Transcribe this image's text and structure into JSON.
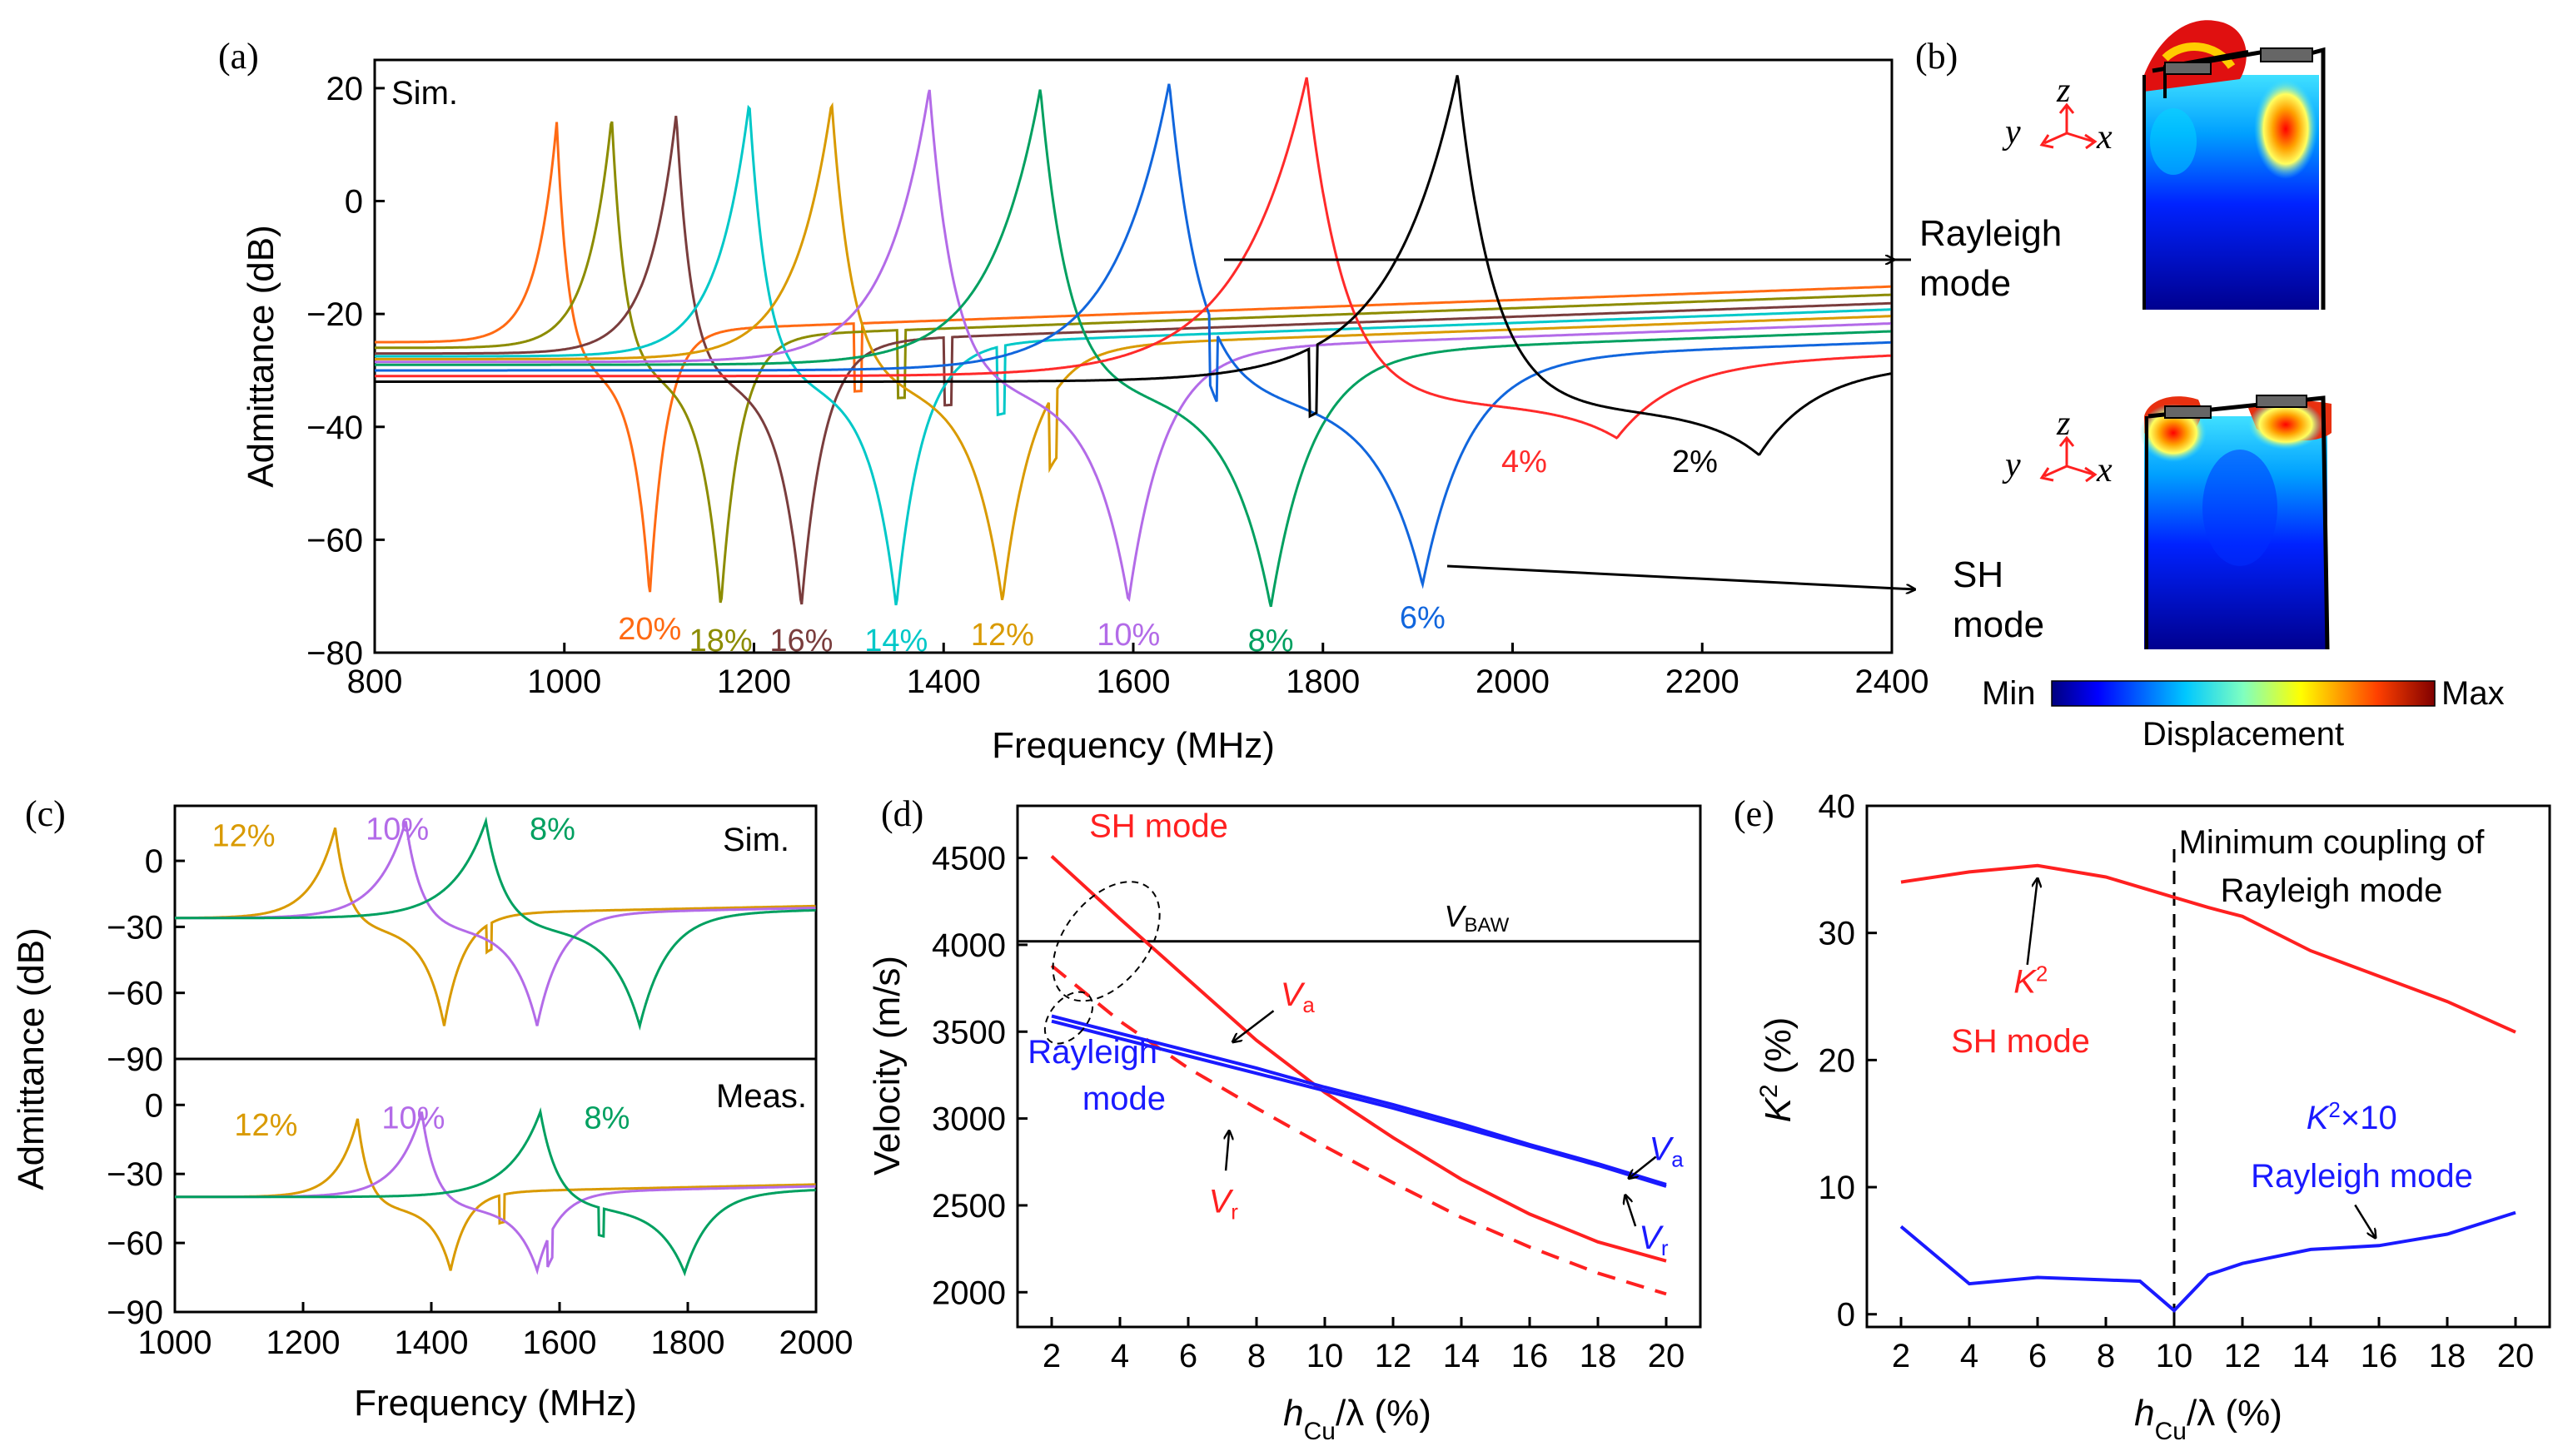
{
  "colors": {
    "c20": "#ff6a13",
    "c18": "#8c8c00",
    "c16": "#7a3d3d",
    "c14": "#00c8c8",
    "c12": "#d99a00",
    "c10": "#b36be8",
    "c8": "#00a060",
    "c6": "#1166dd",
    "c4": "#ff2a2a",
    "c2": "#000000",
    "sh": "#ff2020",
    "ray": "#1a1aff"
  },
  "panel_labels": {
    "a": "(a)",
    "b": "(b)",
    "c": "(c)",
    "d": "(d)",
    "e": "(e)"
  },
  "panel_b": {
    "rayleigh_line1": "Rayleigh",
    "rayleigh_line2": "mode",
    "sh_line1": "SH",
    "sh_line2": "mode",
    "axis_z": "z",
    "axis_y": "y",
    "axis_x": "x",
    "colorbar_min": "Min",
    "colorbar_max": "Max",
    "colorbar_label": "Displacement"
  },
  "chart_data": [
    {
      "id": "a",
      "type": "line",
      "annotation": "Sim.",
      "xlabel": "Frequency (MHz)",
      "ylabel": "Admittance (dB)",
      "xlim": [
        800,
        2400
      ],
      "ylim": [
        -80,
        25
      ],
      "xticks": [
        "800",
        "1000",
        "1200",
        "1400",
        "1600",
        "1800",
        "2000",
        "2200",
        "2400"
      ],
      "yticks": [
        "−80",
        "−60",
        "−40",
        "−20",
        "0",
        "20"
      ],
      "series": [
        {
          "name": "20%",
          "color": "c20",
          "fr": 992,
          "fa": 1090,
          "peak": 14,
          "anti": -70,
          "base": -25,
          "spur": 1310
        },
        {
          "name": "18%",
          "color": "c18",
          "fr": 1050,
          "fa": 1165,
          "peak": 15,
          "anti": -72,
          "base": -26,
          "spur": 1355
        },
        {
          "name": "16%",
          "color": "c16",
          "fr": 1118,
          "fa": 1250,
          "peak": 15.5,
          "anti": -72,
          "base": -27,
          "spur": 1405
        },
        {
          "name": "14%",
          "color": "c14",
          "fr": 1195,
          "fa": 1350,
          "peak": 17.5,
          "anti": -72,
          "base": -27.5,
          "spur": 1460
        },
        {
          "name": "12%",
          "color": "c12",
          "fr": 1282,
          "fa": 1462,
          "peak": 17.5,
          "anti": -71,
          "base": -28,
          "spur": 1515
        },
        {
          "name": "10%",
          "color": "c10",
          "fr": 1385,
          "fa": 1595,
          "peak": 20,
          "anti": -71,
          "base": -28.5,
          "spur": 0
        },
        {
          "name": "8%",
          "color": "c8",
          "fr": 1502,
          "fa": 1745,
          "peak": 20,
          "anti": -72,
          "base": -29,
          "spur": 0
        },
        {
          "name": "6%",
          "color": "c6",
          "fr": 1638,
          "fa": 1905,
          "peak": 21,
          "anti": -68,
          "base": -30,
          "spur": 1685
        },
        {
          "name": "4%",
          "color": "c4",
          "fr": 1783,
          "fa": 2110,
          "peak": 22,
          "anti": -42,
          "base": -31,
          "spur": 0
        },
        {
          "name": "2%",
          "color": "c2",
          "fr": 1942,
          "fa": 2260,
          "peak": 22.5,
          "anti": -45,
          "base": -32,
          "spur": 1790
        }
      ]
    },
    {
      "id": "c",
      "type": "line",
      "xlabel": "Frequency (MHz)",
      "ylabel": "Admittance (dB)",
      "xlim": [
        1000,
        2000
      ],
      "xticks": [
        "1000",
        "1200",
        "1400",
        "1600",
        "1800",
        "2000"
      ],
      "top": {
        "annotation": "Sim.",
        "ylim": [
          -90,
          25
        ],
        "yticks": [
          "−90",
          "−60",
          "−30",
          "0"
        ],
        "series": [
          {
            "name": "12%",
            "color": "c12",
            "fr": 1250,
            "fa": 1420,
            "peak": 15,
            "anti": -75,
            "spur": 1490
          },
          {
            "name": "10%",
            "color": "c10",
            "fr": 1360,
            "fa": 1565,
            "peak": 18,
            "anti": -75,
            "spur": 0
          },
          {
            "name": "8%",
            "color": "c8",
            "fr": 1485,
            "fa": 1725,
            "peak": 18,
            "anti": -75,
            "spur": 0
          }
        ]
      },
      "bottom": {
        "annotation": "Meas.",
        "ylim": [
          -90,
          20
        ],
        "yticks": [
          "−90",
          "−60",
          "−30",
          "0"
        ],
        "series": [
          {
            "name": "12%",
            "color": "c12",
            "fr": 1285,
            "fa": 1430,
            "peak": -6,
            "anti": -72,
            "spur": 1510
          },
          {
            "name": "10%",
            "color": "c10",
            "fr": 1385,
            "fa": 1565,
            "peak": -3,
            "anti": -72,
            "spur": 1585
          },
          {
            "name": "8%",
            "color": "c8",
            "fr": 1570,
            "fa": 1795,
            "peak": -3,
            "anti": -73,
            "spur": 1665
          }
        ]
      }
    },
    {
      "id": "d",
      "type": "line",
      "xlabel_main": "h",
      "xlabel_sub": "Cu",
      "xlabel_rest": "/λ (%)",
      "ylabel": "Velocity (m/s)",
      "xlim": [
        1,
        21
      ],
      "ylim": [
        1800,
        4800
      ],
      "xticks": [
        2,
        4,
        6,
        8,
        10,
        12,
        14,
        16,
        18,
        20
      ],
      "yticks": [
        2000,
        2500,
        3000,
        3500,
        4000,
        4500
      ],
      "hline": {
        "y": 4020,
        "label_main": "V",
        "label_sub": "BAW"
      },
      "series": [
        {
          "name": "SH Va",
          "color": "sh",
          "dash": false,
          "x": [
            2,
            4,
            6,
            8,
            10,
            12,
            14,
            16,
            18,
            20
          ],
          "y": [
            4510,
            4150,
            3800,
            3450,
            3150,
            2890,
            2650,
            2450,
            2290,
            2180
          ]
        },
        {
          "name": "SH Vr",
          "color": "sh",
          "dash": true,
          "x": [
            2,
            4,
            6,
            8,
            10,
            12,
            14,
            16,
            18,
            20
          ],
          "y": [
            3880,
            3560,
            3290,
            3060,
            2840,
            2630,
            2430,
            2260,
            2110,
            1990
          ]
        },
        {
          "name": "Rayleigh Va",
          "color": "ray",
          "dash": false,
          "x": [
            2,
            4,
            6,
            8,
            10,
            12,
            14,
            16,
            18,
            20
          ],
          "y": [
            3590,
            3490,
            3390,
            3290,
            3180,
            3080,
            2970,
            2850,
            2740,
            2620
          ]
        },
        {
          "name": "Rayleigh Vr",
          "color": "ray",
          "dash": false,
          "x": [
            2,
            4,
            6,
            8,
            10,
            12,
            14,
            16,
            18,
            20
          ],
          "y": [
            3560,
            3460,
            3360,
            3260,
            3160,
            3060,
            2950,
            2840,
            2730,
            2610
          ]
        }
      ],
      "labels": {
        "sh_mode": "SH mode",
        "rayleigh_line1": "Rayleigh",
        "rayleigh_line2": "mode",
        "V": "V",
        "a": "a",
        "r": "r"
      }
    },
    {
      "id": "e",
      "type": "line",
      "xlabel_main": "h",
      "xlabel_sub": "Cu",
      "xlabel_rest": "/λ (%)",
      "ylabel_main": "K",
      "ylabel_sup": "2",
      "ylabel_rest": " (%)",
      "xlim": [
        1,
        21
      ],
      "ylim": [
        -1,
        40
      ],
      "xticks": [
        2,
        4,
        6,
        8,
        10,
        12,
        14,
        16,
        18,
        20
      ],
      "yticks": [
        0,
        10,
        20,
        30,
        40
      ],
      "vline": {
        "x": 10,
        "label_line1": "Minimum coupling of",
        "label_line2": "Rayleigh mode"
      },
      "series": [
        {
          "name": "K2 SH mode",
          "color": "sh",
          "x": [
            2,
            4,
            6,
            8,
            10,
            11,
            12,
            14,
            16,
            18,
            20
          ],
          "y": [
            34,
            34.8,
            35.3,
            34.4,
            32.8,
            32,
            31.3,
            28.6,
            26.6,
            24.6,
            22.2
          ]
        },
        {
          "name": "K2x10 Rayleigh mode",
          "color": "ray",
          "x": [
            2,
            4,
            6,
            8,
            9,
            10,
            11,
            12,
            14,
            16,
            18,
            20
          ],
          "y": [
            6.9,
            2.4,
            2.9,
            2.7,
            2.6,
            0.3,
            3.1,
            4,
            5.1,
            5.4,
            6.3,
            8
          ]
        }
      ],
      "labels": {
        "k": "K",
        "sup": "2",
        "sh_mode": "SH mode",
        "rayleigh_k_rest": "×10",
        "rayleigh_mode": "Rayleigh mode"
      }
    }
  ]
}
